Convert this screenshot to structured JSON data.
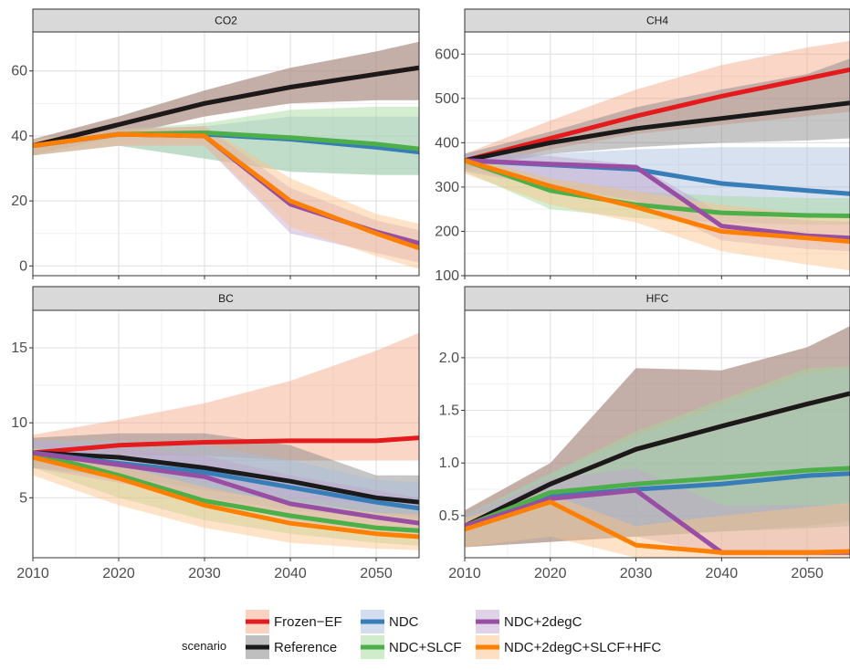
{
  "chart_data": {
    "type": "line",
    "facet_layout": "2x2 grid",
    "x_ticks": [
      2010,
      2020,
      2030,
      2040,
      2050
    ],
    "xlim": [
      2010,
      2055
    ],
    "legend": {
      "title": "scenario",
      "placement": "bottom",
      "entries": [
        "Frozen−EF",
        "Reference",
        "NDC",
        "NDC+SLCF",
        "NDC+2degC",
        "NDC+2degC+SLCF+HFC"
      ]
    },
    "colors": {
      "Frozen-EF": "#e41a1c",
      "Reference": "#1a1a1a",
      "NDC": "#377eb8",
      "NDC+SLCF": "#4daf4a",
      "NDC+2degC": "#984ea3",
      "NDC+2degC+SLCF+HFC": "#ff7f00"
    },
    "band_colors": {
      "Frozen-EF": "#f4a582",
      "Reference": "#808080",
      "NDC": "#a6bddb",
      "NDC+SLCF": "#a1d99b",
      "NDC+2degC": "#c2a5cf",
      "NDC+2degC+SLCF+HFC": "#fdc086"
    },
    "grid": true,
    "panels": [
      {
        "title": "CO2",
        "ylim": [
          -3,
          72
        ],
        "y_ticks": [
          0,
          20,
          40,
          60
        ],
        "x": [
          2010,
          2020,
          2030,
          2040,
          2050,
          2055
        ],
        "series": [
          {
            "key": "Frozen-EF",
            "values": [
              37,
              43.5,
              50,
              55,
              59,
              61
            ],
            "lower": [
              34,
              40,
              46,
              50,
              51,
              51
            ],
            "upper": [
              39,
              46,
              54,
              61,
              66,
              69
            ]
          },
          {
            "key": "Reference",
            "values": [
              37,
              43.5,
              50,
              55,
              59,
              61
            ],
            "lower": [
              34,
              40,
              46,
              50,
              51,
              51
            ],
            "upper": [
              39,
              46,
              54,
              61,
              66,
              69
            ]
          },
          {
            "key": "NDC",
            "values": [
              37,
              40.5,
              40.5,
              39,
              36.5,
              35
            ],
            "lower": [
              34,
              37,
              33,
              29,
              28,
              28
            ],
            "upper": [
              39,
              42,
              43,
              46,
              46,
              46
            ]
          },
          {
            "key": "NDC+SLCF",
            "values": [
              37,
              40.5,
              41,
              39.5,
              37.5,
              36
            ],
            "lower": [
              34,
              37,
              33,
              29,
              28,
              28
            ],
            "upper": [
              39,
              42,
              44,
              48,
              49,
              49
            ]
          },
          {
            "key": "NDC+2degC",
            "values": [
              37,
              40.5,
              40,
              19,
              10.5,
              7
            ],
            "lower": [
              34,
              37,
              37,
              10,
              4,
              1
            ],
            "upper": [
              39,
              42,
              43,
              24,
              14,
              11
            ]
          },
          {
            "key": "NDC+2degC+SLCF+HFC",
            "values": [
              37,
              40.5,
              40,
              20,
              10,
              5.5
            ],
            "lower": [
              34,
              37,
              37,
              12,
              3,
              -1
            ],
            "upper": [
              39,
              42,
              43,
              27,
              16,
              13
            ]
          }
        ]
      },
      {
        "title": "CH4",
        "ylim": [
          100,
          650
        ],
        "y_ticks": [
          100,
          200,
          300,
          400,
          500,
          600
        ],
        "x": [
          2010,
          2020,
          2030,
          2040,
          2050,
          2055
        ],
        "series": [
          {
            "key": "Frozen-EF",
            "values": [
              360,
              410,
              460,
              505,
              545,
              565
            ],
            "lower": [
              340,
              385,
              420,
              440,
              460,
              470
            ],
            "upper": [
              375,
              450,
              520,
              575,
              615,
              630
            ]
          },
          {
            "key": "Reference",
            "values": [
              360,
              400,
              432,
              455,
              478,
              490
            ],
            "lower": [
              340,
              375,
              390,
              400,
              405,
              410
            ],
            "upper": [
              375,
              425,
              480,
              520,
              555,
              590
            ]
          },
          {
            "key": "NDC",
            "values": [
              360,
              350,
              340,
              308,
              292,
              285
            ],
            "lower": [
              340,
              300,
              265,
              240,
              235,
              233
            ],
            "upper": [
              375,
              375,
              385,
              390,
              390,
              390
            ]
          },
          {
            "key": "NDC+SLCF",
            "values": [
              360,
              292,
              260,
              242,
              236,
              235
            ],
            "lower": [
              335,
              250,
              230,
              220,
              215,
              215
            ],
            "upper": [
              370,
              320,
              290,
              280,
              275,
              275
            ]
          },
          {
            "key": "NDC+2degC",
            "values": [
              360,
              352,
              345,
              212,
              190,
              185
            ],
            "lower": [
              335,
              300,
              270,
              180,
              160,
              155
            ],
            "upper": [
              375,
              370,
              350,
              240,
              225,
              222
            ]
          },
          {
            "key": "NDC+2degC+SLCF+HFC",
            "values": [
              360,
              302,
              255,
              200,
              185,
              177
            ],
            "lower": [
              330,
              260,
              220,
              155,
              125,
              112
            ],
            "upper": [
              370,
              320,
              290,
              260,
              240,
              235
            ]
          }
        ]
      },
      {
        "title": "BC",
        "ylim": [
          1,
          17.5
        ],
        "y_ticks": [
          5,
          10,
          15
        ],
        "x": [
          2010,
          2020,
          2030,
          2040,
          2050,
          2055
        ],
        "series": [
          {
            "key": "Frozen-EF",
            "values": [
              8,
              8.5,
              8.7,
              8.8,
              8.8,
              9.0
            ],
            "lower": [
              7.5,
              7.8,
              7.8,
              7.5,
              7.5,
              7.5
            ],
            "upper": [
              9.2,
              10.2,
              11.3,
              12.8,
              14.8,
              16.0
            ]
          },
          {
            "key": "Reference",
            "values": [
              8,
              7.7,
              7.0,
              6.1,
              5.0,
              4.7
            ],
            "lower": [
              7.0,
              6.5,
              5.5,
              4.8,
              4.0,
              3.7
            ],
            "upper": [
              9.0,
              9.3,
              9.3,
              8.5,
              6.5,
              6.5
            ]
          },
          {
            "key": "NDC",
            "values": [
              8,
              7.3,
              6.7,
              5.7,
              4.7,
              4.3
            ],
            "lower": [
              7.0,
              6.3,
              5.0,
              4.2,
              3.6,
              3.4
            ],
            "upper": [
              8.8,
              8.8,
              8.5,
              7.5,
              6.2,
              6.0
            ]
          },
          {
            "key": "NDC+SLCF",
            "values": [
              8,
              6.5,
              4.8,
              3.8,
              3.0,
              2.8
            ],
            "lower": [
              7.0,
              5.0,
              3.5,
              2.6,
              2.0,
              1.8
            ],
            "upper": [
              8.5,
              7.5,
              6.0,
              5.0,
              4.5,
              4.4
            ]
          },
          {
            "key": "NDC+2degC",
            "values": [
              8,
              7.2,
              6.4,
              4.6,
              3.7,
              3.3
            ],
            "lower": [
              7.0,
              6.0,
              5.0,
              3.5,
              2.8,
              2.6
            ],
            "upper": [
              8.8,
              8.3,
              7.8,
              6.5,
              5.5,
              5.0
            ]
          },
          {
            "key": "NDC+2degC+SLCF+HFC",
            "values": [
              7.7,
              6.3,
              4.5,
              3.3,
              2.6,
              2.4
            ],
            "lower": [
              6.5,
              4.5,
              3.0,
              2.0,
              1.6,
              1.5
            ],
            "upper": [
              8.3,
              7.2,
              5.7,
              4.6,
              4.0,
              3.9
            ]
          }
        ]
      },
      {
        "title": "HFC",
        "ylim": [
          0.1,
          2.45
        ],
        "y_ticks": [
          0.5,
          1.0,
          1.5,
          2.0
        ],
        "x": [
          2010,
          2020,
          2030,
          2040,
          2050,
          2055
        ],
        "series": [
          {
            "key": "Frozen-EF",
            "values": [
              0.4,
              0.8,
              1.13,
              1.35,
              1.56,
              1.66
            ],
            "lower": [
              0.2,
              0.25,
              0.3,
              0.35,
              0.4,
              0.45
            ],
            "upper": [
              0.55,
              1.0,
              1.9,
              1.88,
              2.1,
              2.3
            ]
          },
          {
            "key": "Reference",
            "values": [
              0.4,
              0.8,
              1.13,
              1.35,
              1.56,
              1.66
            ],
            "lower": [
              0.2,
              0.25,
              0.3,
              0.35,
              0.4,
              0.45
            ],
            "upper": [
              0.55,
              1.0,
              1.9,
              1.88,
              2.1,
              2.3
            ]
          },
          {
            "key": "NDC",
            "values": [
              0.4,
              0.68,
              0.75,
              0.8,
              0.88,
              0.9
            ],
            "lower": [
              0.22,
              0.3,
              0.3,
              0.35,
              0.38,
              0.4
            ],
            "upper": [
              0.5,
              0.9,
              1.25,
              1.55,
              1.85,
              1.9
            ]
          },
          {
            "key": "NDC+SLCF",
            "values": [
              0.4,
              0.72,
              0.8,
              0.86,
              0.93,
              0.95
            ],
            "lower": [
              0.22,
              0.3,
              0.3,
              0.35,
              0.38,
              0.4
            ],
            "upper": [
              0.5,
              0.9,
              1.3,
              1.6,
              1.9,
              1.92
            ]
          },
          {
            "key": "NDC+2degC",
            "values": [
              0.4,
              0.66,
              0.74,
              0.15,
              0.15,
              0.15
            ],
            "lower": [
              0.22,
              0.3,
              0.3,
              0.12,
              0.12,
              0.12
            ],
            "upper": [
              0.5,
              0.85,
              0.95,
              0.6,
              0.6,
              0.6
            ]
          },
          {
            "key": "NDC+2degC+SLCF+HFC",
            "values": [
              0.37,
              0.63,
              0.22,
              0.15,
              0.15,
              0.16
            ],
            "lower": [
              0.2,
              0.3,
              0.1,
              0.05,
              0.05,
              0.05
            ],
            "upper": [
              0.48,
              0.7,
              0.4,
              0.5,
              0.58,
              0.62
            ]
          }
        ]
      }
    ]
  }
}
